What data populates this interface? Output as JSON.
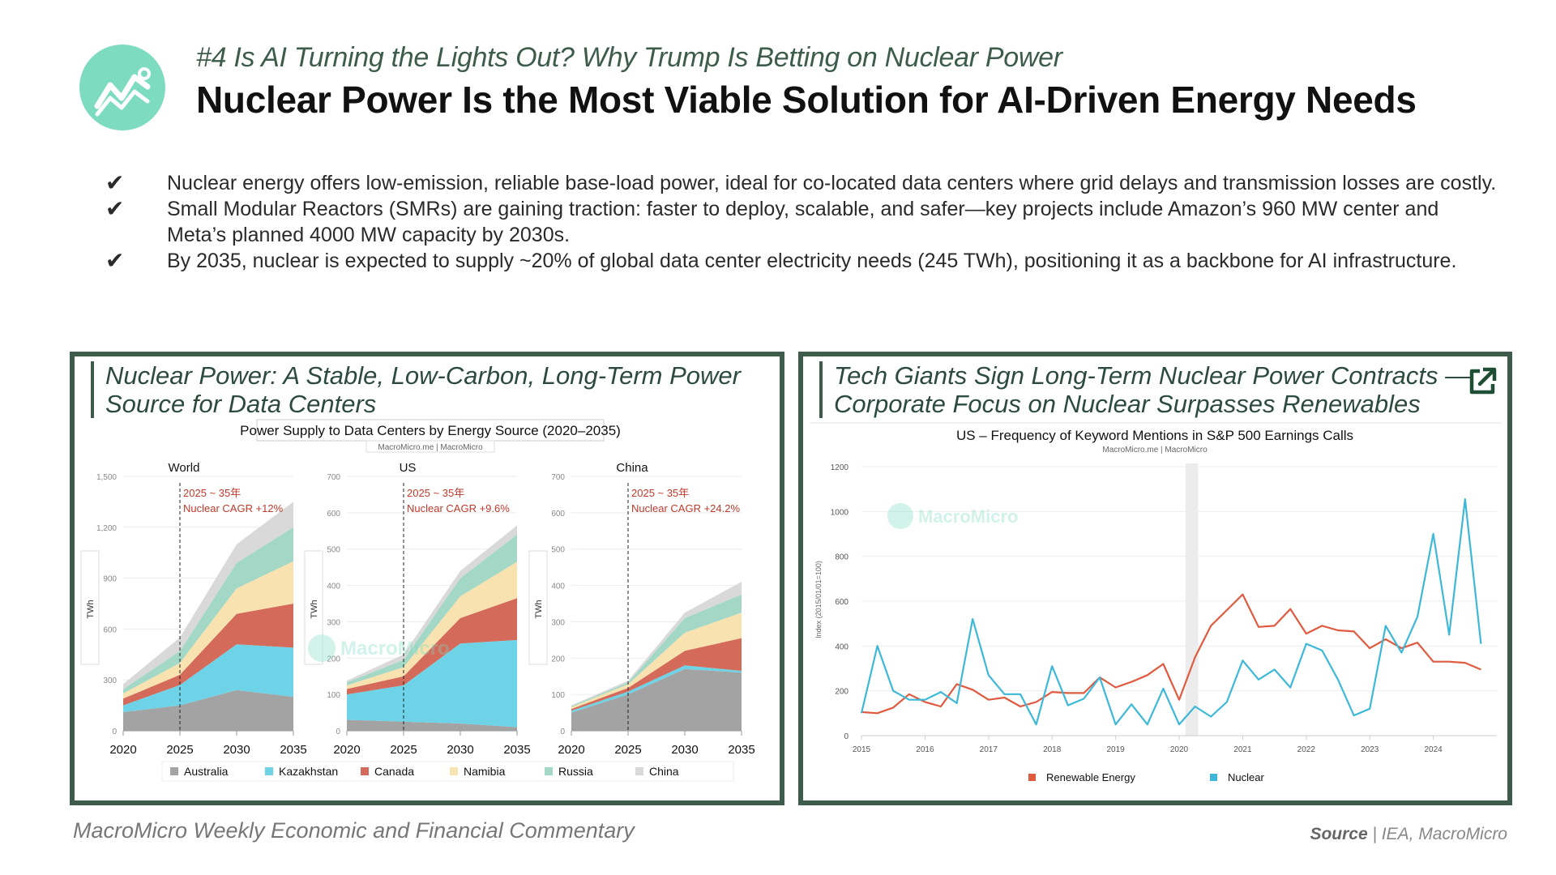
{
  "header": {
    "subtitle": "#4 Is AI Turning the Lights Out? Why Trump Is Betting on Nuclear Power",
    "title": "Nuclear Power Is the Most Viable Solution for AI-Driven Energy Needs"
  },
  "bullets": [
    "Nuclear energy offers low-emission, reliable base-load power, ideal for co-located data centers where grid delays and transmission losses are costly.",
    "Small Modular Reactors (SMRs) are gaining traction: faster to deploy, scalable, and safer—key projects include Amazon’s 960 MW center and Meta’s planned 4000 MW capacity by 2030s.",
    "By 2035, nuclear is expected to supply ~20% of global data center electricity needs (245 TWh), positioning it as a backbone for AI infrastructure."
  ],
  "check_icon": "✔",
  "left_panel": {
    "title_line1": "Nuclear Power: A Stable, Low-Carbon, Long-Term Power",
    "title_line2": "Source for Data Centers"
  },
  "right_panel": {
    "title_line1": "Tech Giants Sign Long-Term Nuclear Power Contracts —",
    "title_line2": "Corporate Focus on Nuclear Surpasses Renewables",
    "icon": "external-link-icon"
  },
  "footer": {
    "left": "MacroMicro Weekly Economic and Financial Commentary",
    "source_label": "Source",
    "source_sep": " | ",
    "source_text": "IEA, MacroMicro"
  },
  "colors": {
    "accent": "#3d5c4b",
    "logo": "#7ddcbf",
    "annotation": "#c0392b"
  },
  "chart_data": [
    {
      "type": "area",
      "title": "Power Supply to Data Centers by Energy Source (2020–2035)",
      "watermark": "MacroMicro.me | MacroMicro",
      "brand": "MacroMicro",
      "ylabel": "TWh",
      "x": [
        2020,
        2025,
        2030,
        2035
      ],
      "xticks": [
        "2020",
        "2025",
        "2030",
        "2035"
      ],
      "legend": [
        {
          "name": "Australia",
          "color": "#a3a3a3"
        },
        {
          "name": "Kazakhstan",
          "color": "#6fd3e8"
        },
        {
          "name": "Canada",
          "color": "#d46a5a"
        },
        {
          "name": "Namibia",
          "color": "#f8e2b0"
        },
        {
          "name": "Russia",
          "color": "#a4d8c6"
        },
        {
          "name": "China",
          "color": "#d9d9d9"
        }
      ],
      "panels": [
        {
          "name": "World",
          "ylim": [
            0,
            1500
          ],
          "yticks": [
            "0",
            "300",
            "600",
            "900",
            "1,200",
            "1,500"
          ],
          "annotation_line1": "2025 ~ 35年",
          "annotation_line2": "Nuclear CAGR +12%",
          "series": [
            {
              "name": "Australia",
              "values": [
                110,
                150,
                240,
                200
              ]
            },
            {
              "name": "Kazakhstan",
              "values": [
                40,
                120,
                270,
                290
              ]
            },
            {
              "name": "Canada",
              "values": [
                40,
                60,
                180,
                260
              ]
            },
            {
              "name": "Namibia",
              "values": [
                30,
                70,
                150,
                250
              ]
            },
            {
              "name": "Russia",
              "values": [
                25,
                70,
                150,
                200
              ]
            },
            {
              "name": "China",
              "values": [
                30,
                80,
                110,
                150
              ]
            }
          ]
        },
        {
          "name": "US",
          "ylim": [
            0,
            700
          ],
          "yticks": [
            "0",
            "100",
            "200",
            "300",
            "400",
            "500",
            "600",
            "700"
          ],
          "annotation_line1": "2025 ~ 35年",
          "annotation_line2": "Nuclear CAGR +9.6%",
          "series": [
            {
              "name": "Australia",
              "values": [
                30,
                25,
                20,
                10
              ]
            },
            {
              "name": "Kazakhstan",
              "values": [
                70,
                100,
                220,
                240
              ]
            },
            {
              "name": "Canada",
              "values": [
                15,
                25,
                70,
                115
              ]
            },
            {
              "name": "Namibia",
              "values": [
                10,
                25,
                60,
                100
              ]
            },
            {
              "name": "Russia",
              "values": [
                8,
                20,
                50,
                75
              ]
            },
            {
              "name": "China",
              "values": [
                5,
                15,
                20,
                25
              ]
            }
          ]
        },
        {
          "name": "China",
          "ylim": [
            0,
            700
          ],
          "yticks": [
            "0",
            "100",
            "200",
            "300",
            "400",
            "500",
            "600",
            "700"
          ],
          "annotation_line1": "2025 ~ 35年",
          "annotation_line2": "Nuclear CAGR +24.2%",
          "series": [
            {
              "name": "Australia",
              "values": [
                50,
                100,
                170,
                160
              ]
            },
            {
              "name": "Kazakhstan",
              "values": [
                5,
                8,
                10,
                5
              ]
            },
            {
              "name": "Canada",
              "values": [
                5,
                10,
                40,
                90
              ]
            },
            {
              "name": "Namibia",
              "values": [
                5,
                10,
                50,
                70
              ]
            },
            {
              "name": "Russia",
              "values": [
                3,
                5,
                40,
                50
              ]
            },
            {
              "name": "China",
              "values": [
                2,
                5,
                15,
                35
              ]
            }
          ]
        }
      ]
    },
    {
      "type": "line",
      "title": "US – Frequency of Keyword Mentions in S&P 500 Earnings Calls",
      "watermark": "MacroMicro.me | MacroMicro",
      "brand": "MacroMicro",
      "ylabel": "Index (2015/01/01=100)",
      "ylim": [
        0,
        1200
      ],
      "yticks": [
        "0",
        "200",
        "400",
        "600",
        "800",
        "1000",
        "1200"
      ],
      "xlim": [
        2015,
        2025
      ],
      "xticks": [
        "2015",
        "2016",
        "2017",
        "2018",
        "2019",
        "2020",
        "2021",
        "2022",
        "2023",
        "2024"
      ],
      "shaded_period": [
        2020.1,
        2020.3
      ],
      "series": [
        {
          "name": "Renewable Energy",
          "color": "#e05a3f",
          "x": [
            2015.0,
            2015.25,
            2015.5,
            2015.75,
            2016.0,
            2016.25,
            2016.5,
            2016.75,
            2017.0,
            2017.25,
            2017.5,
            2017.75,
            2018.0,
            2018.25,
            2018.5,
            2018.75,
            2019.0,
            2019.25,
            2019.5,
            2019.75,
            2020.0,
            2020.25,
            2020.5,
            2020.75,
            2021.0,
            2021.25,
            2021.5,
            2021.75,
            2022.0,
            2022.25,
            2022.5,
            2022.75,
            2023.0,
            2023.25,
            2023.5,
            2023.75,
            2024.0,
            2024.25,
            2024.5,
            2024.75
          ],
          "values": [
            105,
            100,
            125,
            185,
            150,
            130,
            230,
            205,
            160,
            170,
            130,
            150,
            195,
            190,
            190,
            260,
            215,
            240,
            270,
            320,
            160,
            350,
            490,
            560,
            630,
            485,
            490,
            565,
            455,
            490,
            470,
            465,
            390,
            430,
            390,
            415,
            330,
            330,
            325,
            295
          ]
        },
        {
          "name": "Nuclear",
          "color": "#3db8d8",
          "x": [
            2015.0,
            2015.25,
            2015.5,
            2015.75,
            2016.0,
            2016.25,
            2016.5,
            2016.75,
            2017.0,
            2017.25,
            2017.5,
            2017.75,
            2018.0,
            2018.25,
            2018.5,
            2018.75,
            2019.0,
            2019.25,
            2019.5,
            2019.75,
            2020.0,
            2020.25,
            2020.5,
            2020.75,
            2021.0,
            2021.25,
            2021.5,
            2021.75,
            2022.0,
            2022.25,
            2022.5,
            2022.75,
            2023.0,
            2023.25,
            2023.5,
            2023.75,
            2024.0,
            2024.25,
            2024.5,
            2024.75
          ],
          "values": [
            100,
            400,
            200,
            160,
            160,
            195,
            145,
            520,
            270,
            185,
            185,
            50,
            310,
            135,
            165,
            260,
            50,
            140,
            50,
            210,
            50,
            130,
            85,
            150,
            335,
            250,
            295,
            215,
            410,
            380,
            250,
            90,
            120,
            490,
            370,
            530,
            900,
            450,
            1055,
            410
          ]
        }
      ]
    }
  ]
}
